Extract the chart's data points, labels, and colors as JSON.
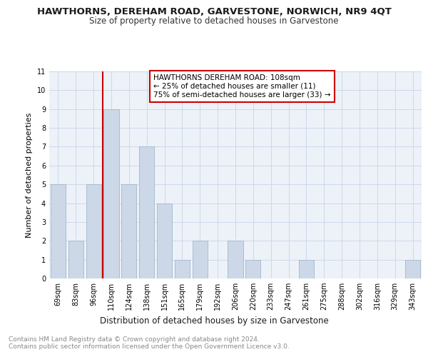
{
  "title": "HAWTHORNS, DEREHAM ROAD, GARVESTONE, NORWICH, NR9 4QT",
  "subtitle": "Size of property relative to detached houses in Garvestone",
  "xlabel": "Distribution of detached houses by size in Garvestone",
  "ylabel": "Number of detached properties",
  "categories": [
    "69sqm",
    "83sqm",
    "96sqm",
    "110sqm",
    "124sqm",
    "138sqm",
    "151sqm",
    "165sqm",
    "179sqm",
    "192sqm",
    "206sqm",
    "220sqm",
    "233sqm",
    "247sqm",
    "261sqm",
    "275sqm",
    "288sqm",
    "302sqm",
    "316sqm",
    "329sqm",
    "343sqm"
  ],
  "values": [
    5,
    2,
    5,
    9,
    5,
    7,
    4,
    1,
    2,
    0,
    2,
    1,
    0,
    0,
    1,
    0,
    0,
    0,
    0,
    0,
    1
  ],
  "bar_color": "#ccd8e8",
  "bar_edgecolor": "#a8bdd0",
  "vline_x": 2.5,
  "vline_color": "#cc0000",
  "annotation_text": "HAWTHORNS DEREHAM ROAD: 108sqm\n← 25% of detached houses are smaller (11)\n75% of semi-detached houses are larger (33) →",
  "annotation_box_edgecolor": "#cc0000",
  "annotation_box_facecolor": "#ffffff",
  "ylim": [
    0,
    11
  ],
  "yticks": [
    0,
    1,
    2,
    3,
    4,
    5,
    6,
    7,
    8,
    9,
    10,
    11
  ],
  "grid_color": "#cdd8ea",
  "background_color": "#edf2f8",
  "footer": "Contains HM Land Registry data © Crown copyright and database right 2024.\nContains public sector information licensed under the Open Government Licence v3.0.",
  "title_fontsize": 9.5,
  "subtitle_fontsize": 8.5,
  "xlabel_fontsize": 8.5,
  "ylabel_fontsize": 8,
  "tick_fontsize": 7,
  "annotation_fontsize": 7.5,
  "footer_fontsize": 6.5
}
